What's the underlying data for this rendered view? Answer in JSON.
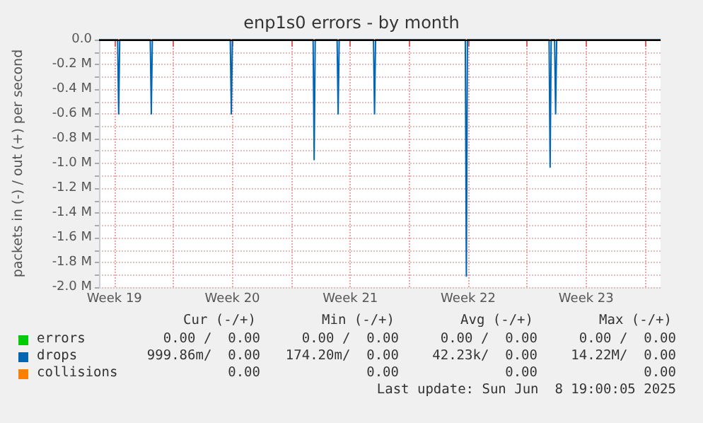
{
  "chart_data": {
    "type": "line",
    "title": "enp1s0 errors - by month",
    "ylabel": "packets in (-) / out (+) per second",
    "xlim": [
      "2025-05-07T14:00",
      "2025-06-09T22:00"
    ],
    "xticks": [
      {
        "value": "2025-05-08T12:00",
        "label": "Week 19"
      },
      {
        "value": "2025-05-12T00:00",
        "label": null
      },
      {
        "value": "2025-05-15T12:00",
        "label": "Week 20"
      },
      {
        "value": "2025-05-19T00:00",
        "label": null
      },
      {
        "value": "2025-05-22T12:00",
        "label": "Week 21"
      },
      {
        "value": "2025-05-26T00:00",
        "label": null
      },
      {
        "value": "2025-05-29T12:00",
        "label": "Week 22"
      },
      {
        "value": "2025-06-02T00:00",
        "label": null
      },
      {
        "value": "2025-06-05T12:00",
        "label": "Week 23"
      },
      {
        "value": "2025-06-09T00:00",
        "label": null
      }
    ],
    "ylim": [
      -2000000,
      0
    ],
    "yticks": [
      {
        "value": 0,
        "label": "0.0"
      },
      {
        "value": -100000,
        "label": null
      },
      {
        "value": -200000,
        "label": "-0.2 M"
      },
      {
        "value": -300000,
        "label": null
      },
      {
        "value": -400000,
        "label": "-0.4 M"
      },
      {
        "value": -500000,
        "label": null
      },
      {
        "value": -600000,
        "label": "-0.6 M"
      },
      {
        "value": -700000,
        "label": null
      },
      {
        "value": -800000,
        "label": "-0.8 M"
      },
      {
        "value": -900000,
        "label": null
      },
      {
        "value": -1000000,
        "label": "-1.0 M"
      },
      {
        "value": -1100000,
        "label": null
      },
      {
        "value": -1200000,
        "label": "-1.2 M"
      },
      {
        "value": -1300000,
        "label": null
      },
      {
        "value": -1400000,
        "label": "-1.4 M"
      },
      {
        "value": -1500000,
        "label": null
      },
      {
        "value": -1600000,
        "label": "-1.6 M"
      },
      {
        "value": -1700000,
        "label": null
      },
      {
        "value": -1800000,
        "label": "-1.8 M"
      },
      {
        "value": -1900000,
        "label": null
      },
      {
        "value": -2000000,
        "label": "-2.0 M"
      }
    ],
    "grid": true,
    "legend": "bottom left",
    "marker": "none",
    "line_style": "solid",
    "series": [
      {
        "name": "errors",
        "color": "#00cc00"
      },
      {
        "name": "drops",
        "color": "#0066b3",
        "x": [
          "2025-05-07T14:00",
          "2025-05-08T16:30",
          "2025-05-08T18:00",
          "2025-05-08T19:30",
          "2025-05-10T15:00",
          "2025-05-10T16:30",
          "2025-05-10T18:00",
          "2025-05-15T09:00",
          "2025-05-15T10:30",
          "2025-05-15T12:00",
          "2025-05-20T07:00",
          "2025-05-20T08:30",
          "2025-05-20T10:00",
          "2025-05-21T17:10",
          "2025-05-21T18:40",
          "2025-05-21T20:10",
          "2025-05-23T21:00",
          "2025-05-23T22:30",
          "2025-05-24T00:00",
          "2025-05-29T07:50",
          "2025-05-29T09:20",
          "2025-05-29T10:50",
          "2025-06-03T07:10",
          "2025-06-03T08:40",
          "2025-06-03T10:10",
          "2025-06-03T15:00",
          "2025-06-03T16:30",
          "2025-06-03T18:00",
          "2025-06-09T22:00"
        ],
        "values": [
          0,
          0,
          -600000,
          0,
          0,
          -600000,
          0,
          0,
          -600000,
          0,
          0,
          -970000,
          0,
          0,
          -600000,
          0,
          0,
          -600000,
          0,
          0,
          -1910000,
          0,
          0,
          -1030000,
          0,
          0,
          -600000,
          0,
          0
        ]
      },
      {
        "name": "collisions",
        "color": "#ff8000"
      }
    ],
    "ref_lines": [
      {
        "axis": "y",
        "value": 0,
        "label": null,
        "color": "#000000"
      }
    ],
    "annotations": [
      "Cur (-/+)",
      "Min (-/+)",
      "Avg (-/+)",
      "Max (-/+)",
      "0.00 /  0.00",
      "0.00 /  0.00",
      "0.00 /  0.00",
      "0.00 /  0.00",
      "999.86m/  0.00",
      "174.20m/  0.00",
      "42.23k/  0.00",
      "14.22M/  0.00",
      "0.00",
      "0.00",
      "0.00",
      "0.00",
      "Last update: Sun Jun  8 19:00:05 2025"
    ]
  }
}
